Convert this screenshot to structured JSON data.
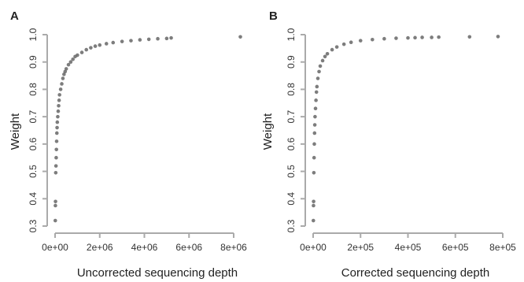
{
  "colors": {
    "points": "#666666",
    "axis": "#aaaaaa",
    "text": "#222222"
  },
  "chart_data": [
    {
      "type": "scatter",
      "panel_label": "A",
      "xlabel": "Uncorrected sequencing depth",
      "ylabel": "Weight",
      "xlim": [
        0,
        8000000
      ],
      "ylim": [
        0.3,
        1.0
      ],
      "x_ticks": [
        0,
        2000000,
        4000000,
        6000000,
        8000000
      ],
      "x_tick_labels": [
        "0e+00",
        "2e+06",
        "4e+06",
        "6e+06",
        "8e+06"
      ],
      "y_ticks": [
        0.3,
        0.4,
        0.5,
        0.6,
        0.7,
        0.8,
        0.9,
        1.0
      ],
      "y_tick_labels": [
        "0.3",
        "0.4",
        "0.5",
        "0.6",
        "0.7",
        "0.8",
        "0.9",
        "1.0"
      ],
      "grid": false,
      "points": [
        [
          10000,
          0.32
        ],
        [
          15000,
          0.375
        ],
        [
          20000,
          0.39
        ],
        [
          30000,
          0.495
        ],
        [
          40000,
          0.52
        ],
        [
          50000,
          0.55
        ],
        [
          60000,
          0.58
        ],
        [
          70000,
          0.61
        ],
        [
          80000,
          0.64
        ],
        [
          90000,
          0.66
        ],
        [
          100000,
          0.68
        ],
        [
          120000,
          0.7
        ],
        [
          140000,
          0.72
        ],
        [
          160000,
          0.74
        ],
        [
          180000,
          0.76
        ],
        [
          200000,
          0.78
        ],
        [
          250000,
          0.8
        ],
        [
          300000,
          0.82
        ],
        [
          350000,
          0.84
        ],
        [
          400000,
          0.855
        ],
        [
          450000,
          0.865
        ],
        [
          500000,
          0.875
        ],
        [
          600000,
          0.89
        ],
        [
          700000,
          0.9
        ],
        [
          800000,
          0.91
        ],
        [
          900000,
          0.92
        ],
        [
          1000000,
          0.925
        ],
        [
          1200000,
          0.935
        ],
        [
          1400000,
          0.945
        ],
        [
          1600000,
          0.952
        ],
        [
          1800000,
          0.958
        ],
        [
          2000000,
          0.962
        ],
        [
          2300000,
          0.967
        ],
        [
          2600000,
          0.971
        ],
        [
          3000000,
          0.975
        ],
        [
          3400000,
          0.978
        ],
        [
          3800000,
          0.981
        ],
        [
          4200000,
          0.983
        ],
        [
          4600000,
          0.985
        ],
        [
          5000000,
          0.986
        ],
        [
          5200000,
          0.988
        ],
        [
          8300000,
          0.992
        ]
      ]
    },
    {
      "type": "scatter",
      "panel_label": "B",
      "xlabel": "Corrected sequencing depth",
      "ylabel": "Weight",
      "xlim": [
        0,
        800000
      ],
      "ylim": [
        0.3,
        1.0
      ],
      "x_ticks": [
        0,
        200000,
        400000,
        600000,
        800000
      ],
      "x_tick_labels": [
        "0e+00",
        "2e+05",
        "4e+05",
        "6e+05",
        "8e+05"
      ],
      "y_ticks": [
        0.3,
        0.4,
        0.5,
        0.6,
        0.7,
        0.8,
        0.9,
        1.0
      ],
      "y_tick_labels": [
        "0.3",
        "0.4",
        "0.5",
        "0.6",
        "0.7",
        "0.8",
        "0.9",
        "1.0"
      ],
      "grid": false,
      "points": [
        [
          1000,
          0.32
        ],
        [
          1500,
          0.375
        ],
        [
          2000,
          0.39
        ],
        [
          3000,
          0.495
        ],
        [
          4000,
          0.55
        ],
        [
          5000,
          0.6
        ],
        [
          6000,
          0.64
        ],
        [
          7000,
          0.67
        ],
        [
          8000,
          0.7
        ],
        [
          10000,
          0.73
        ],
        [
          12000,
          0.76
        ],
        [
          14000,
          0.79
        ],
        [
          16000,
          0.81
        ],
        [
          20000,
          0.84
        ],
        [
          25000,
          0.865
        ],
        [
          30000,
          0.885
        ],
        [
          40000,
          0.905
        ],
        [
          50000,
          0.92
        ],
        [
          60000,
          0.93
        ],
        [
          80000,
          0.945
        ],
        [
          100000,
          0.955
        ],
        [
          130000,
          0.965
        ],
        [
          160000,
          0.972
        ],
        [
          200000,
          0.978
        ],
        [
          250000,
          0.982
        ],
        [
          300000,
          0.985
        ],
        [
          350000,
          0.987
        ],
        [
          400000,
          0.988
        ],
        [
          430000,
          0.989
        ],
        [
          460000,
          0.99
        ],
        [
          500000,
          0.99
        ],
        [
          530000,
          0.991
        ],
        [
          660000,
          0.992
        ],
        [
          780000,
          0.993
        ]
      ]
    }
  ]
}
